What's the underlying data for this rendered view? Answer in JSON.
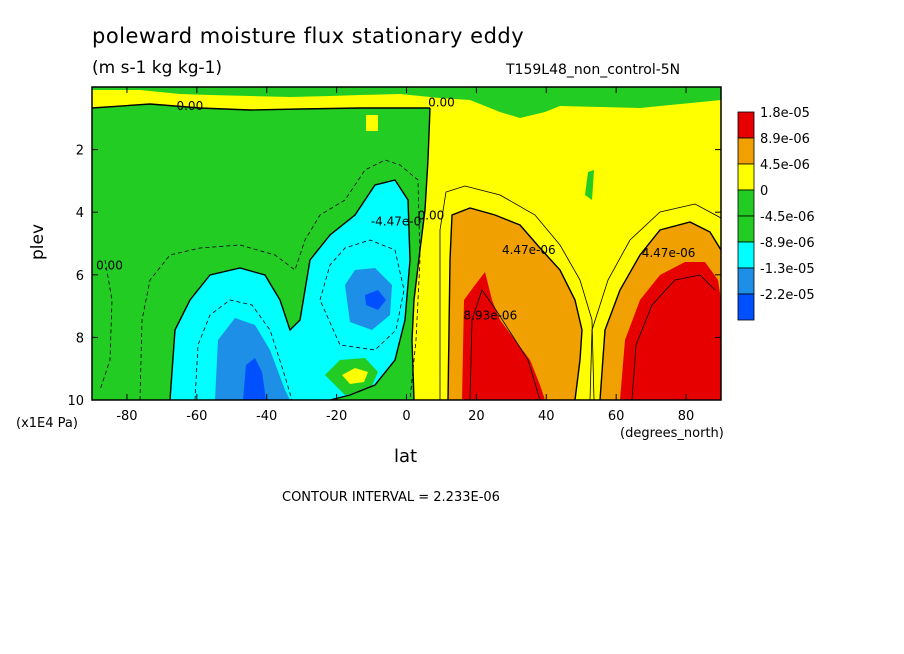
{
  "chart_data": {
    "type": "heatmap",
    "title": "poleward moisture flux stationary eddy",
    "units": "(m s-1 kg kg-1)",
    "dataset": "T159L48_non_control-5N",
    "xlabel": "lat",
    "xunits": "(degrees_north)",
    "ylabel": "plev",
    "yunits": "(x1E4 Pa)",
    "contour_interval": "CONTOUR INTERVAL = 2.233E-06",
    "xlim": [
      -90,
      90
    ],
    "ylim": [
      10,
      0
    ],
    "xticks": [
      -80,
      -60,
      -40,
      -20,
      0,
      20,
      40,
      60,
      80
    ],
    "yticks": [
      2,
      4,
      6,
      8,
      10
    ],
    "legend_position": "right",
    "legend": [
      {
        "label": "1.8e-05",
        "color": "#e60000"
      },
      {
        "label": "8.9e-06",
        "color": "#f0a000"
      },
      {
        "label": "4.5e-06",
        "color": "#ffff00"
      },
      {
        "label": "0",
        "color": "#22cc22"
      },
      {
        "label": "-4.5e-06",
        "color": "#22cc22"
      },
      {
        "label": "-8.9e-06",
        "color": "#00ffff"
      },
      {
        "label": "-1.3e-05",
        "color": "#1e8fe6"
      },
      {
        "label": "-2.2e-05",
        "color": "#0050ff"
      }
    ],
    "contour_labels": [
      {
        "text": "0.00",
        "x": -62,
        "y": 0.6
      },
      {
        "text": "0.00",
        "x": 10,
        "y": 0.5
      },
      {
        "text": "0.00",
        "x": -85,
        "y": 5.7
      },
      {
        "text": "0.00",
        "x": 7,
        "y": 4.1
      },
      {
        "text": "-4.47e-0",
        "x": -3,
        "y": 4.3
      },
      {
        "text": "4.47e-06",
        "x": 35,
        "y": 5.2
      },
      {
        "text": "8.93e-06",
        "x": 24,
        "y": 7.3
      },
      {
        "text": "4.47e-06",
        "x": 75,
        "y": 5.3
      }
    ],
    "regions": [
      {
        "level": "yellow",
        "x": [
          -90,
          90
        ],
        "y": [
          0,
          10
        ]
      },
      {
        "level": "green",
        "x": [
          -85,
          5
        ],
        "y": [
          0.7,
          10
        ]
      },
      {
        "level": "cyan",
        "x": [
          -63,
          3
        ],
        "y": [
          3.5,
          9.5
        ]
      },
      {
        "level": "blue",
        "x": [
          -50,
          -35
        ],
        "y": [
          7.5,
          10
        ]
      },
      {
        "level": "orange",
        "x": [
          12,
          50
        ],
        "y": [
          4,
          10
        ]
      },
      {
        "level": "red",
        "x": [
          16,
          45
        ],
        "y": [
          6,
          10
        ]
      },
      {
        "level": "orange",
        "x": [
          56,
          90
        ],
        "y": [
          4.5,
          10
        ]
      },
      {
        "level": "red",
        "x": [
          63,
          90
        ],
        "y": [
          5.5,
          10
        ]
      }
    ]
  }
}
